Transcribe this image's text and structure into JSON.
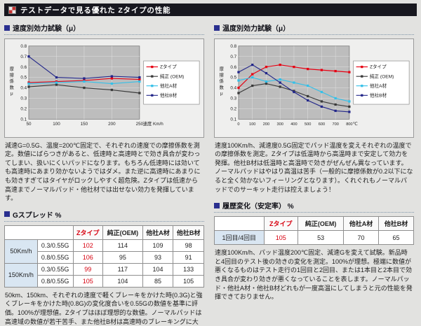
{
  "header": {
    "title": "テストデータで見る優れた Zタイプの性能",
    "icon": "checker-icon"
  },
  "colors": {
    "accent_red": "#d7000f",
    "header_bg": "#17171f",
    "row_label_bg": "#d9e6f2",
    "series_z": "#e60012",
    "series_oem": "#3a3a3a",
    "series_a": "#35c0e8",
    "series_b": "#23278a"
  },
  "left": {
    "chart_section_title": "速度別効力試験（μ）",
    "chart_caption": "減速G=0.5G、温度=200℃固定で、それぞれの速度での摩擦係数を測定。数値にばらつきがあると、低速時と高速時とで効き具合が変わってしまい、扱いにくいパッドになります。もちろん低速時には効いても高速時にあまり効かないようではダメ。また逆に高速時にあまりにも効きすぎてはタイヤがロックしやすく超危険。Zタイプは低速から高速までノーマルパッド・他社材では出せない効力を発揮しています。",
    "table_section_title": "Gスプレッド %",
    "g_spread": {
      "col_headers": [
        "Zタイプ",
        "純正(OEM)",
        "他社A材",
        "他社B材"
      ],
      "row_groups": [
        {
          "speed": "50Km/h",
          "rows": [
            {
              "g": "0.3/0.55G",
              "values": [
                "102",
                "114",
                "109",
                "98"
              ]
            },
            {
              "g": "0.8/0.55G",
              "values": [
                "106",
                "95",
                "93",
                "91"
              ]
            }
          ]
        },
        {
          "speed": "150Km/h",
          "rows": [
            {
              "g": "0.3/0.55G",
              "values": [
                "99",
                "117",
                "104",
                "133"
              ]
            },
            {
              "g": "0.8/0.55G",
              "values": [
                "105",
                "104",
                "85",
                "105"
              ]
            }
          ]
        }
      ]
    },
    "table_caption": "50km、150km、それぞれの速度で軽くブレーキをかけた時(0.3G)と強くブレーキをかけた時(0.8G)の変化度合いを0.55Gの数値を基準に評価。100%が理想値。Zタイプはほぼ理想的な数値。ノーマルパッドは高速域の数値が若干苦手、また他社B材は高速時のブレーキングに大きな変化あり。"
  },
  "right": {
    "chart_section_title": "温度別効力試験（μ）",
    "chart_caption": "速度100Km/h、減速度0.5G固定でパッド温度を変えそれぞれの温度での摩擦係数を測定。Zタイプは低温時から高温時まで安定して効力を発揮。他社B材は低温時と高温時で効きがぜんぜん異なっています。ノーマルパッドはやはり高温は苦手（一般的に摩擦係数が0.2以下になると全く効かないフィーリングとなります）。くれぐれもノーマルパッドでのサーキット走行は控えましょう！",
    "table_section_title": "履歴変化（安定率） %",
    "history": {
      "col_headers": [
        "Zタイプ",
        "純正(OEM)",
        "他社A材",
        "他社B材"
      ],
      "row_label": "1回目/4回目",
      "values": [
        "105",
        "53",
        "70",
        "65"
      ]
    },
    "table_caption": "速度100Km/h、パッド温度200℃固定、減速Gを変えて試験。新品時と4回目のテスト後の効きの変化を測定。100%が理想。極端に数値が悪くなるものはテスト走行の1回目と2回目、または1本目と2本目で効き具合が変わり効きが悪くなっていることを表します。ノーマルパッド・他社A材・他社B材どれもが一度高温にしてしまうと元の性能を発揮できておりません。"
  },
  "chart_data": [
    {
      "type": "line",
      "title": "速度別効力試験",
      "x": [
        50,
        100,
        150,
        200,
        250
      ],
      "xlabel": "速度 Km/h",
      "ylabel": "摩擦係数μ",
      "ylim": [
        0.1,
        0.8
      ],
      "yticks": [
        0.1,
        0.2,
        0.3,
        0.4,
        0.5,
        0.6,
        0.7,
        0.8
      ],
      "grid": true,
      "legend_position": "right",
      "series": [
        {
          "name": "Zタイプ",
          "color": "#e60012",
          "values": [
            0.45,
            0.46,
            0.47,
            0.49,
            0.48
          ]
        },
        {
          "name": "純正 (OEM)",
          "color": "#3a3a3a",
          "values": [
            0.41,
            0.43,
            0.4,
            0.38,
            0.35
          ]
        },
        {
          "name": "他社A材",
          "color": "#35c0e8",
          "values": [
            0.44,
            0.45,
            0.46,
            0.44,
            0.46
          ]
        },
        {
          "name": "他社B材",
          "color": "#23278a",
          "values": [
            0.7,
            0.5,
            0.49,
            0.51,
            0.5
          ]
        }
      ]
    },
    {
      "type": "line",
      "title": "温度別効力試験",
      "x": [
        0,
        100,
        200,
        300,
        400,
        500,
        600,
        700,
        800
      ],
      "xlabel": "℃",
      "ylabel": "摩擦係数μ",
      "ylim": [
        0.1,
        0.8
      ],
      "yticks": [
        0.1,
        0.2,
        0.3,
        0.4,
        0.5,
        0.6,
        0.7,
        0.8
      ],
      "grid": true,
      "legend_position": "right",
      "series": [
        {
          "name": "Zタイプ",
          "color": "#e60012",
          "values": [
            0.4,
            0.53,
            0.6,
            0.62,
            0.6,
            0.58,
            0.57,
            0.56,
            0.55
          ]
        },
        {
          "name": "純正 (OEM)",
          "color": "#3a3a3a",
          "values": [
            0.35,
            0.42,
            0.44,
            0.41,
            0.37,
            0.32,
            0.27,
            0.24,
            0.22
          ]
        },
        {
          "name": "他社A材",
          "color": "#35c0e8",
          "values": [
            0.47,
            0.5,
            0.46,
            0.48,
            0.45,
            0.42,
            0.36,
            0.3,
            0.27
          ]
        },
        {
          "name": "他社B材",
          "color": "#23278a",
          "values": [
            0.55,
            0.62,
            0.54,
            0.45,
            0.36,
            0.28,
            0.22,
            0.18,
            0.17
          ]
        }
      ]
    }
  ]
}
